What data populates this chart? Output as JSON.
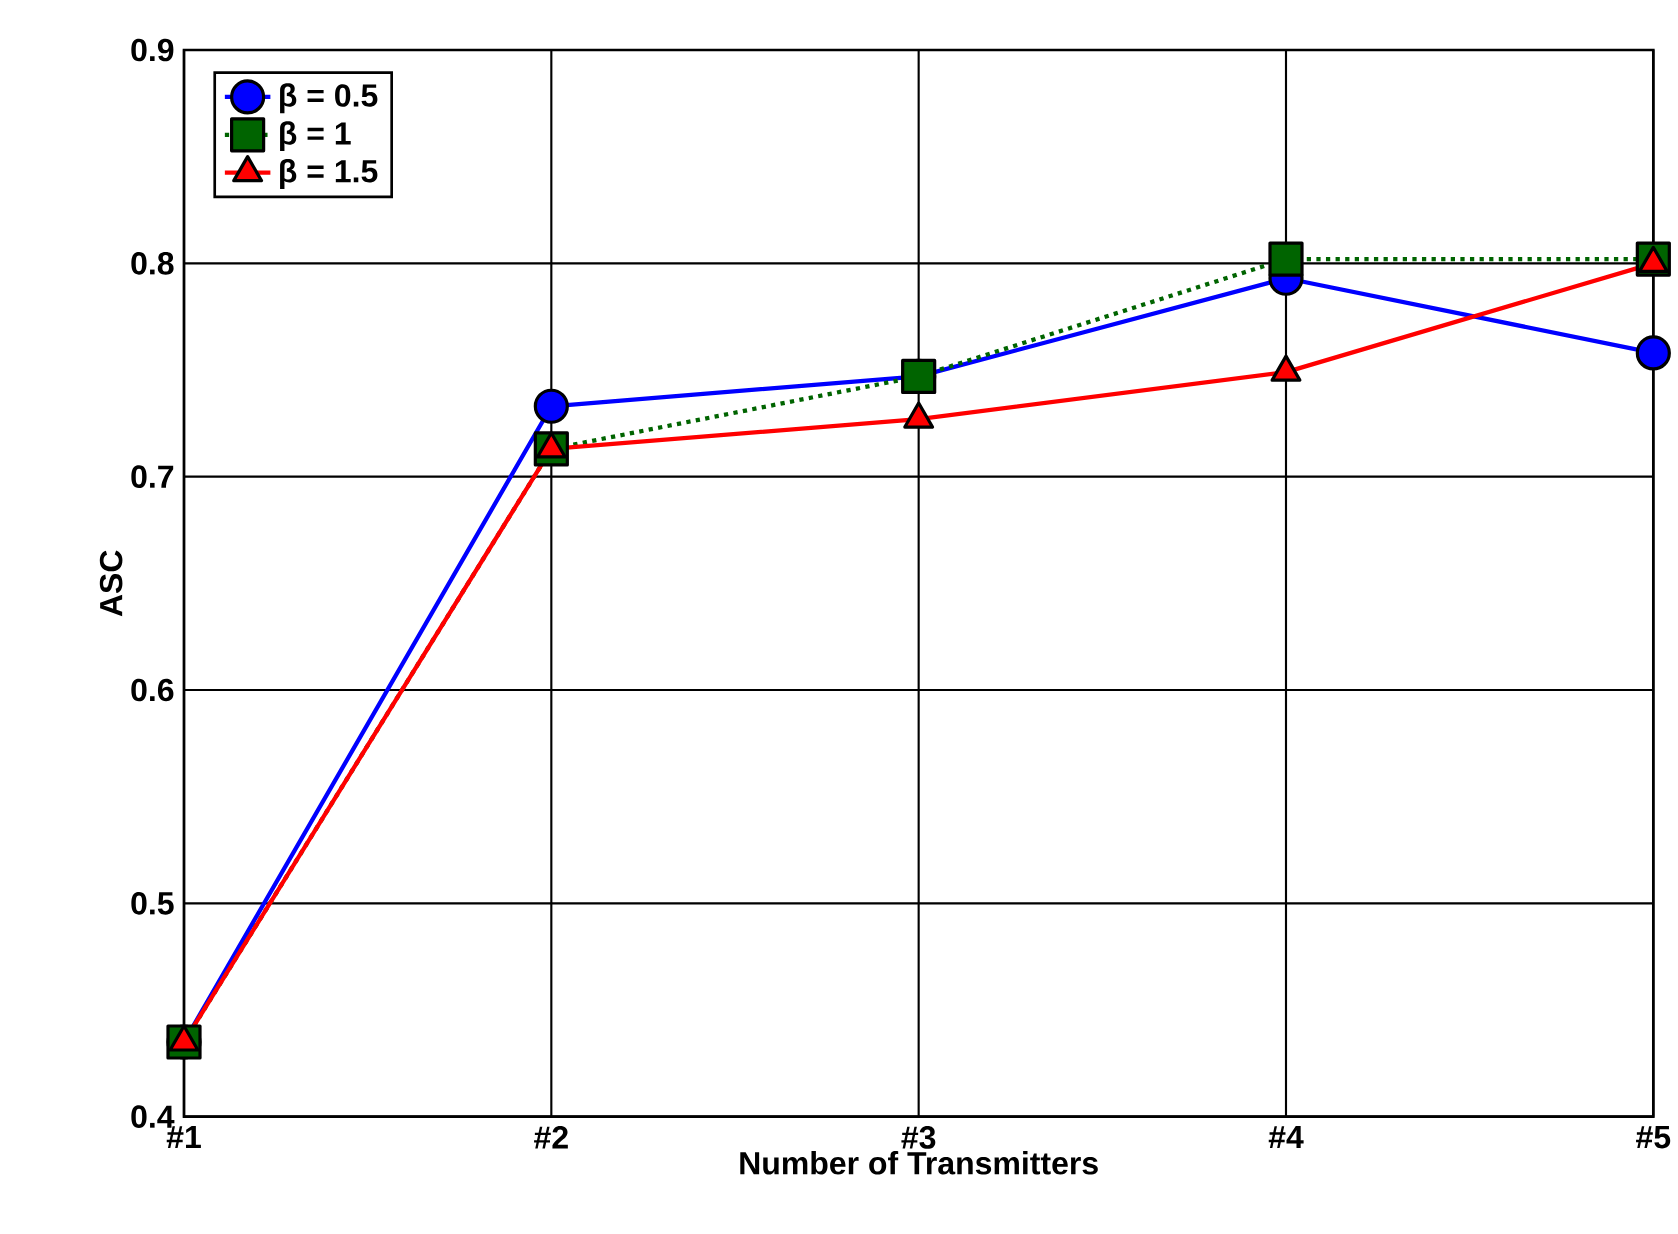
{
  "chart_data": {
    "type": "line",
    "xlabel": "Number of Transmitters",
    "ylabel": "ASC",
    "categories": [
      "#1",
      "#2",
      "#3",
      "#4",
      "#5"
    ],
    "series": [
      {
        "name": "β = 0.5",
        "color": "#0000ff",
        "marker": "circle",
        "line_style": "solid",
        "values": [
          0.435,
          0.733,
          0.747,
          0.793,
          0.758
        ]
      },
      {
        "name": "β = 1",
        "color": "#006400",
        "marker": "square",
        "line_style": "dotted",
        "values": [
          0.435,
          0.713,
          0.747,
          0.802,
          0.802
        ]
      },
      {
        "name": "β = 1.5",
        "color": "#ff0000",
        "marker": "triangle",
        "line_style": "solid",
        "values": [
          0.435,
          0.713,
          0.727,
          0.749,
          0.8
        ]
      }
    ],
    "ylim": [
      0.4,
      0.9
    ],
    "yticks": [
      0.4,
      0.5,
      0.6,
      0.7,
      0.8,
      0.9
    ],
    "grid": true,
    "legend": "top left"
  }
}
